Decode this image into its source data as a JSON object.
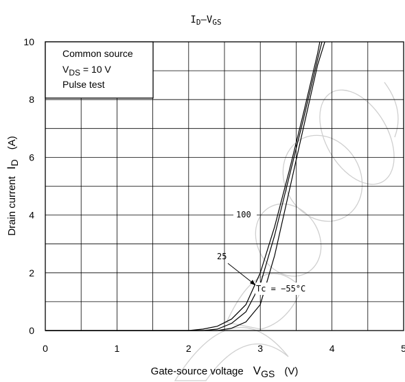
{
  "chart_data": {
    "type": "line",
    "title": {
      "main": "I",
      "sub1": "D",
      "mid": "–V",
      "sub2": "GS"
    },
    "xlabel": {
      "text": "Gate-source voltage",
      "sym": "V",
      "sub": "GS",
      "unit": "(V)"
    },
    "ylabel": {
      "text": "Drain current",
      "sym": "I",
      "sub": "D",
      "unit": "(A)"
    },
    "xlim": [
      0,
      5
    ],
    "ylim": [
      0,
      10
    ],
    "x_ticks": [
      "0",
      "1",
      "2",
      "3",
      "4",
      "5"
    ],
    "y_ticks": [
      "0",
      "2",
      "4",
      "6",
      "8",
      "10"
    ],
    "grid": true,
    "legend_box": {
      "line1": "Common source",
      "line2_sym": "V",
      "line2_sub": "DS",
      "line2_rest": " = 10 V",
      "line3": "Pulse test"
    },
    "series": [
      {
        "name": "100",
        "x": [
          2.0,
          2.2,
          2.4,
          2.6,
          2.8,
          3.0,
          3.2,
          3.4,
          3.6,
          3.8,
          3.83
        ],
        "y": [
          0.0,
          0.05,
          0.15,
          0.4,
          0.9,
          2.0,
          3.6,
          5.5,
          7.5,
          9.6,
          10.0
        ]
      },
      {
        "name": "25",
        "x": [
          2.2,
          2.4,
          2.6,
          2.8,
          3.0,
          3.2,
          3.4,
          3.6,
          3.8,
          3.86
        ],
        "y": [
          0.0,
          0.05,
          0.25,
          0.65,
          1.6,
          3.3,
          5.3,
          7.3,
          9.4,
          10.0
        ]
      },
      {
        "name": "Tc = −55°C",
        "x": [
          2.4,
          2.6,
          2.8,
          3.0,
          3.2,
          3.4,
          3.6,
          3.8,
          3.9
        ],
        "y": [
          0.0,
          0.08,
          0.3,
          0.9,
          2.6,
          4.8,
          7.0,
          9.2,
          10.0
        ]
      }
    ],
    "annotations": [
      "100",
      "25",
      "Tc = −55°C"
    ]
  }
}
